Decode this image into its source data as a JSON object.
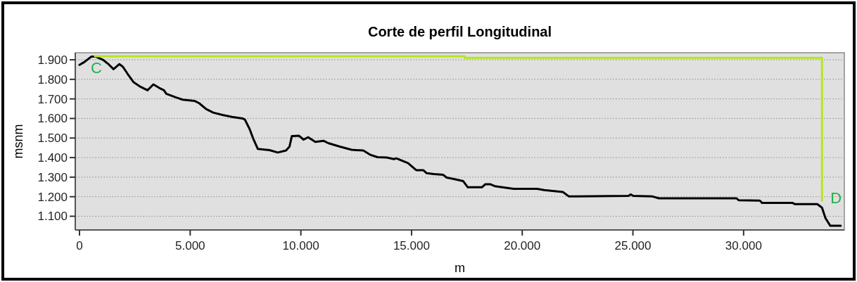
{
  "chart_data": {
    "type": "line",
    "title": "Corte de perfil Longitudinal",
    "xlabel": "m",
    "ylabel": "msnm",
    "xlim": [
      -190,
      34550
    ],
    "ylim": [
      1030,
      1936
    ],
    "xticks": [
      0,
      {
        "value": 5000,
        "label": "5.000"
      },
      {
        "value": 10000,
        "label": "10.000"
      },
      {
        "value": 15000,
        "label": "15.000"
      },
      {
        "value": 20000,
        "label": "20.000"
      },
      {
        "value": 25000,
        "label": "25.000"
      },
      {
        "value": 30000,
        "label": "30.000"
      }
    ],
    "yticks": [
      {
        "value": 1100,
        "label": "1.100"
      },
      {
        "value": 1200,
        "label": "1.200"
      },
      {
        "value": 1300,
        "label": "1.300"
      },
      {
        "value": 1400,
        "label": "1.400"
      },
      {
        "value": 1500,
        "label": "1.500"
      },
      {
        "value": 1600,
        "label": "1.600"
      },
      {
        "value": 1700,
        "label": "1.700"
      },
      {
        "value": 1800,
        "label": "1.800"
      },
      {
        "value": 1900,
        "label": "1.900"
      }
    ],
    "grid": "y",
    "marker": "none",
    "line_style": "solid",
    "series": [
      {
        "color": "#000000",
        "x": [
          0,
          212,
          530,
          742,
          1060,
          1325,
          1537,
          1802,
          1961,
          2173,
          2438,
          2756,
          3074,
          3339,
          3604,
          3816,
          3922,
          4346,
          4664,
          5194,
          5406,
          5724,
          6042,
          6466,
          6890,
          7367,
          7473,
          7685,
          7844,
          8056,
          8586,
          8957,
          9328,
          9487,
          9593,
          9644,
          9909,
          10121,
          10333,
          10651,
          11022,
          11234,
          11764,
          12294,
          12824,
          13142,
          13460,
          13884,
          14202,
          14308,
          14838,
          15209,
          15527,
          15686,
          16004,
          16428,
          16587,
          17011,
          17329,
          17541,
          18177,
          18336,
          18548,
          18760,
          19608,
          20668,
          20986,
          21834,
          22099,
          22470,
          24797,
          24903,
          25009,
          25857,
          26175,
          29672,
          29778,
          30732,
          30838,
          32215,
          32321,
          33328,
          33540,
          33699,
          33911,
          34388
        ],
        "values": [
          1874,
          1888,
          1916,
          1916,
          1900,
          1876,
          1852,
          1878,
          1864,
          1828,
          1786,
          1762,
          1744,
          1774,
          1756,
          1744,
          1726,
          1708,
          1696,
          1690,
          1678,
          1648,
          1630,
          1618,
          1608,
          1600,
          1594,
          1546,
          1498,
          1444,
          1438,
          1426,
          1436,
          1456,
          1510,
          1510,
          1512,
          1492,
          1504,
          1480,
          1486,
          1474,
          1456,
          1440,
          1436,
          1414,
          1402,
          1400,
          1392,
          1396,
          1372,
          1336,
          1336,
          1320,
          1316,
          1312,
          1298,
          1288,
          1280,
          1248,
          1248,
          1264,
          1264,
          1254,
          1240,
          1240,
          1234,
          1224,
          1202,
          1202,
          1204,
          1212,
          1204,
          1202,
          1192,
          1192,
          1182,
          1180,
          1168,
          1168,
          1162,
          1162,
          1144,
          1090,
          1052,
          1052
        ]
      },
      {
        "color": "#b5e61d",
        "x": [
          700,
          17400,
          17400,
          33540,
          33540
        ],
        "values": [
          1918,
          1918,
          1910,
          1910,
          1180
        ]
      }
    ],
    "annotations": [
      {
        "text": "C",
        "x": 700,
        "y": 1918
      },
      {
        "text": "D",
        "x": 33540,
        "y": 1180
      }
    ]
  }
}
